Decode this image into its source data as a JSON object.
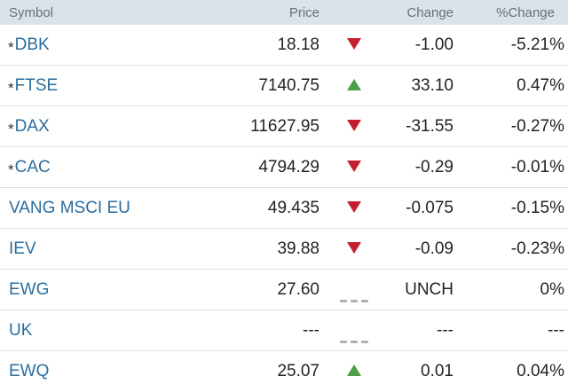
{
  "table": {
    "header": {
      "symbol_label": "Symbol",
      "price_label": "Price",
      "direction_label": "",
      "change_label": "Change",
      "pct_change_label": "%Change"
    },
    "rows": [
      {
        "prefix": "*",
        "symbol": "DBK",
        "price": "18.18",
        "direction": "down",
        "change": "-1.00",
        "pct_change": "-5.21%"
      },
      {
        "prefix": "*",
        "symbol": "FTSE",
        "price": "7140.75",
        "direction": "up",
        "change": "33.10",
        "pct_change": "0.47%"
      },
      {
        "prefix": "*",
        "symbol": "DAX",
        "price": "11627.95",
        "direction": "down",
        "change": "-31.55",
        "pct_change": "-0.27%"
      },
      {
        "prefix": "*",
        "symbol": "CAC",
        "price": "4794.29",
        "direction": "down",
        "change": "-0.29",
        "pct_change": "-0.01%"
      },
      {
        "prefix": "",
        "symbol": "VANG MSCI EU",
        "price": "49.435",
        "direction": "down",
        "change": "-0.075",
        "pct_change": "-0.15%"
      },
      {
        "prefix": "",
        "symbol": "IEV",
        "price": "39.88",
        "direction": "down",
        "change": "-0.09",
        "pct_change": "-0.23%"
      },
      {
        "prefix": "",
        "symbol": "EWG",
        "price": "27.60",
        "direction": "unch",
        "change": "UNCH",
        "pct_change": "0%"
      },
      {
        "prefix": "",
        "symbol": "UK",
        "price": "---",
        "direction": "unch",
        "change": "---",
        "pct_change": "---"
      },
      {
        "prefix": "",
        "symbol": "EWQ",
        "price": "25.07",
        "direction": "up",
        "change": "0.01",
        "pct_change": "0.04%"
      }
    ]
  },
  "icons": {
    "up": "up-triangle-icon",
    "down": "down-triangle-icon",
    "unch": "unchanged-dashes-icon"
  },
  "colors": {
    "header_bg": "#dce2e9",
    "header_text": "#66717c",
    "symbol_link": "#2a6d9d",
    "value_text": "#1f2124",
    "up_green": "#4e9d49",
    "down_red": "#c41f2f",
    "unch_gray": "#aeb0b2",
    "divider": "#dedede"
  }
}
